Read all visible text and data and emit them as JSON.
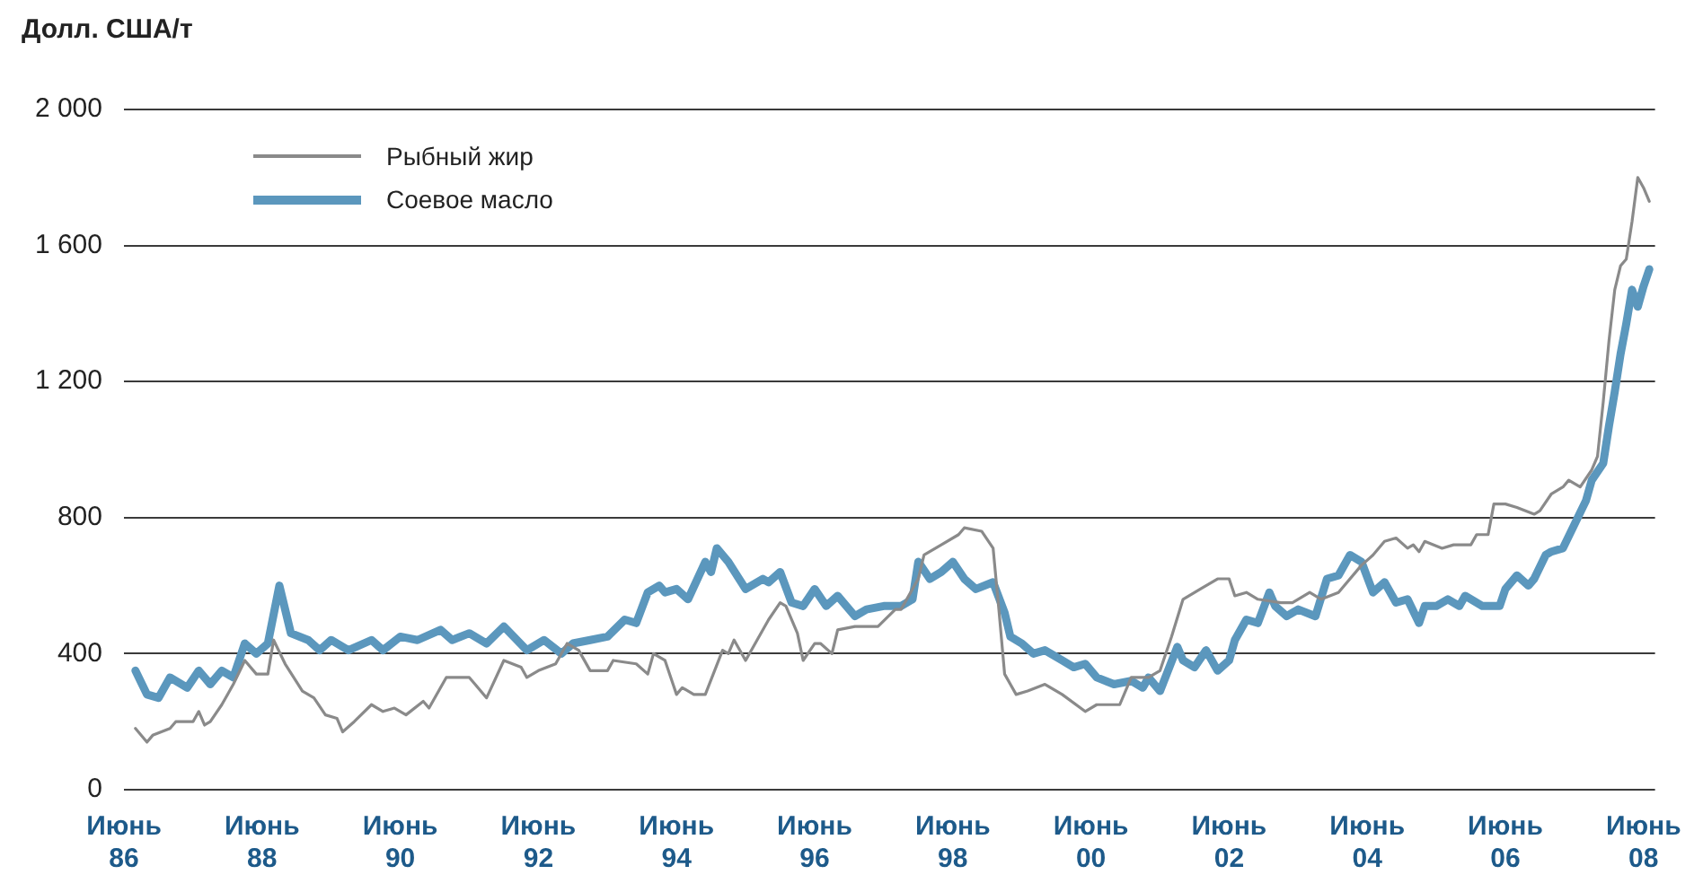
{
  "chart_data": {
    "type": "line",
    "ylabel": "Долл. США/т",
    "xlim": [
      "1986-06",
      "2008-08"
    ],
    "ylim": [
      0,
      2000
    ],
    "xticks": [
      {
        "value": "1986-06",
        "label": "Июнь 86"
      },
      {
        "value": "1988-06",
        "label": "Июнь 88"
      },
      {
        "value": "1990-06",
        "label": "Июнь 90"
      },
      {
        "value": "1992-06",
        "label": "Июнь 92"
      },
      {
        "value": "1994-06",
        "label": "Июнь 94"
      },
      {
        "value": "1996-06",
        "label": "Июнь 96"
      },
      {
        "value": "1998-06",
        "label": "Июнь 98"
      },
      {
        "value": "2000-06",
        "label": "Июнь 00"
      },
      {
        "value": "2002-06",
        "label": "Июнь 02"
      },
      {
        "value": "2004-06",
        "label": "Июнь 04"
      },
      {
        "value": "2006-06",
        "label": "Июнь 06"
      },
      {
        "value": "2008-06",
        "label": "Июнь 08"
      }
    ],
    "yticks": [
      0,
      400,
      800,
      {
        "value": 1200,
        "label": "1 200"
      },
      {
        "value": 1600,
        "label": "1 600"
      },
      {
        "value": 2000,
        "label": "2 000"
      }
    ],
    "grid": "y",
    "legend": "top left",
    "marker": "none",
    "line_style": "solid",
    "series": [
      {
        "name": "Рыбный жир",
        "color": "#8a8a8a",
        "x": [
          "1986-08",
          "1986-10",
          "1986-11",
          "1987-02",
          "1987-03",
          "1987-06",
          "1987-07",
          "1987-08",
          "1987-09",
          "1987-11",
          "1988-01",
          "1988-03",
          "1988-05",
          "1988-07",
          "1988-08",
          "1988-10",
          "1989-01",
          "1989-03",
          "1989-05",
          "1989-07",
          "1989-08",
          "1989-10",
          "1990-01",
          "1990-03",
          "1990-05",
          "1990-07",
          "1990-10",
          "1990-11",
          "1991-02",
          "1991-06",
          "1991-09",
          "1991-12",
          "1992-03",
          "1992-04",
          "1992-06",
          "1992-09",
          "1992-11",
          "1993-01",
          "1993-03",
          "1993-06",
          "1993-07",
          "1993-11",
          "1994-01",
          "1994-02",
          "1994-04",
          "1994-06",
          "1994-07",
          "1994-09",
          "1994-11",
          "1995-02",
          "1995-03",
          "1995-04",
          "1995-06",
          "1995-08",
          "1995-10",
          "1995-12",
          "1996-01",
          "1996-03",
          "1996-04",
          "1996-06",
          "1996-07",
          "1996-09",
          "1996-10",
          "1997-01",
          "1997-05",
          "1997-08",
          "1997-09",
          "1997-12",
          "1998-01",
          "1998-04",
          "1998-07",
          "1998-08",
          "1998-11",
          "1999-01",
          "1999-02",
          "1999-03",
          "1999-05",
          "1999-07",
          "1999-10",
          "2000-01",
          "2000-05",
          "2000-07",
          "2000-11",
          "2001-01",
          "2001-04",
          "2001-06",
          "2001-08",
          "2001-10",
          "2002-01",
          "2002-04",
          "2002-06",
          "2002-07",
          "2002-09",
          "2002-11",
          "2003-03",
          "2003-05",
          "2003-08",
          "2003-10",
          "2004-01",
          "2004-05",
          "2004-07",
          "2004-09",
          "2004-11",
          "2005-01",
          "2005-02",
          "2005-03",
          "2005-04",
          "2005-07",
          "2005-09",
          "2005-12",
          "2006-01",
          "2006-03",
          "2006-04",
          "2006-06",
          "2006-08",
          "2006-11",
          "2006-12",
          "2007-02",
          "2007-04",
          "2007-05",
          "2007-07",
          "2007-09",
          "2007-10",
          "2007-11",
          "2007-12",
          "2008-01",
          "2008-02",
          "2008-03",
          "2008-04",
          "2008-05",
          "2008-06",
          "2008-07"
        ],
        "values": [
          180,
          140,
          160,
          180,
          200,
          200,
          230,
          190,
          200,
          250,
          310,
          380,
          340,
          340,
          440,
          370,
          290,
          270,
          220,
          210,
          170,
          200,
          250,
          230,
          240,
          220,
          260,
          240,
          330,
          330,
          270,
          380,
          360,
          330,
          350,
          370,
          430,
          410,
          350,
          350,
          380,
          370,
          340,
          400,
          380,
          280,
          300,
          280,
          280,
          410,
          400,
          440,
          380,
          440,
          500,
          550,
          540,
          460,
          380,
          430,
          430,
          400,
          470,
          480,
          480,
          530,
          530,
          620,
          690,
          720,
          750,
          770,
          760,
          710,
          530,
          340,
          280,
          290,
          310,
          280,
          230,
          250,
          250,
          330,
          330,
          350,
          450,
          560,
          590,
          620,
          620,
          570,
          580,
          560,
          550,
          550,
          580,
          560,
          580,
          660,
          690,
          730,
          740,
          710,
          720,
          700,
          730,
          710,
          720,
          720,
          750,
          750,
          840,
          840,
          830,
          810,
          820,
          870,
          890,
          910,
          890,
          940,
          980,
          1140,
          1320,
          1470,
          1540,
          1560,
          1670,
          1800,
          1770,
          1730
        ]
      },
      {
        "name": "Соевое масло",
        "color": "#5b97bd",
        "x": [
          "1986-08",
          "1986-10",
          "1986-12",
          "1987-02",
          "1987-05",
          "1987-07",
          "1987-09",
          "1987-11",
          "1988-01",
          "1988-03",
          "1988-05",
          "1988-07",
          "1988-09",
          "1988-11",
          "1989-02",
          "1989-04",
          "1989-06",
          "1989-09",
          "1990-01",
          "1990-03",
          "1990-06",
          "1990-09",
          "1991-01",
          "1991-03",
          "1991-06",
          "1991-09",
          "1991-12",
          "1992-04",
          "1992-07",
          "1992-10",
          "1992-12",
          "1993-03",
          "1993-06",
          "1993-09",
          "1993-11",
          "1994-01",
          "1994-03",
          "1994-04",
          "1994-06",
          "1994-08",
          "1994-11",
          "1994-12",
          "1995-01",
          "1995-03",
          "1995-06",
          "1995-09",
          "1995-10",
          "1995-12",
          "1996-02",
          "1996-04",
          "1996-06",
          "1996-08",
          "1996-10",
          "1997-01",
          "1997-03",
          "1997-06",
          "1997-09",
          "1997-11",
          "1997-12",
          "1998-02",
          "1998-04",
          "1998-06",
          "1998-08",
          "1998-10",
          "1999-01",
          "1999-03",
          "1999-04",
          "1999-06",
          "1999-08",
          "1999-10",
          "2000-01",
          "2000-03",
          "2000-05",
          "2000-07",
          "2000-10",
          "2001-01",
          "2001-03",
          "2001-04",
          "2001-06",
          "2001-09",
          "2001-10",
          "2001-12",
          "2002-02",
          "2002-04",
          "2002-06",
          "2002-07",
          "2002-09",
          "2002-11",
          "2003-01",
          "2003-02",
          "2003-04",
          "2003-06",
          "2003-09",
          "2003-11",
          "2004-01",
          "2004-03",
          "2004-05",
          "2004-07",
          "2004-09",
          "2004-11",
          "2005-01",
          "2005-03",
          "2005-04",
          "2005-06",
          "2005-08",
          "2005-10",
          "2005-11",
          "2006-02",
          "2006-05",
          "2006-06",
          "2006-08",
          "2006-10",
          "2006-11",
          "2007-01",
          "2007-02",
          "2007-04",
          "2007-06",
          "2007-08",
          "2007-09",
          "2007-11",
          "2007-12",
          "2008-01",
          "2008-02",
          "2008-03",
          "2008-04",
          "2008-05",
          "2008-06",
          "2008-07"
        ],
        "values": [
          350,
          280,
          270,
          330,
          300,
          350,
          310,
          350,
          330,
          430,
          400,
          430,
          600,
          460,
          440,
          410,
          440,
          410,
          440,
          410,
          450,
          440,
          470,
          440,
          460,
          430,
          480,
          410,
          440,
          400,
          430,
          440,
          450,
          500,
          490,
          580,
          600,
          580,
          590,
          560,
          670,
          640,
          710,
          670,
          590,
          620,
          610,
          640,
          550,
          540,
          590,
          540,
          570,
          510,
          530,
          540,
          540,
          560,
          670,
          620,
          640,
          670,
          620,
          590,
          610,
          520,
          450,
          430,
          400,
          410,
          380,
          360,
          370,
          330,
          310,
          320,
          300,
          330,
          290,
          420,
          380,
          360,
          410,
          350,
          380,
          440,
          500,
          490,
          580,
          540,
          510,
          530,
          510,
          620,
          630,
          690,
          670,
          580,
          610,
          550,
          560,
          490,
          540,
          540,
          560,
          540,
          570,
          540,
          540,
          590,
          630,
          600,
          620,
          690,
          700,
          710,
          780,
          850,
          910,
          960,
          1070,
          1170,
          1280,
          1370,
          1470,
          1420,
          1480,
          1530
        ]
      }
    ]
  }
}
